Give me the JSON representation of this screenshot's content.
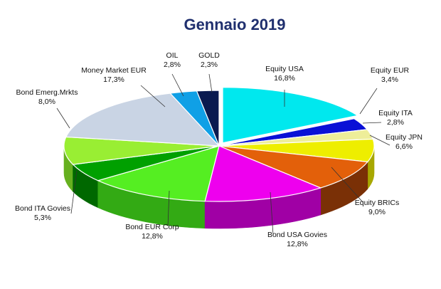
{
  "chart_data": {
    "type": "pie",
    "title": "Gennaio 2019",
    "slices": [
      {
        "label": "Equity USA",
        "value": 16.8,
        "value_text": "16,8%",
        "color": "#00e8ee",
        "dark": "#00aab0"
      },
      {
        "label": "Equity EUR",
        "value": 3.4,
        "value_text": "3,4%",
        "color": "#0a10d6",
        "dark": "#050a90"
      },
      {
        "label": "Equity ITA",
        "value": 2.8,
        "value_text": "2,8%",
        "color": "#eeee99",
        "dark": "#b5b56a"
      },
      {
        "label": "Equity JPN",
        "value": 6.6,
        "value_text": "6,6%",
        "color": "#eeee00",
        "dark": "#a8a800"
      },
      {
        "label": "Equity BRICs",
        "value": 9.0,
        "value_text": "9,0%",
        "color": "#e3600a",
        "dark": "#7a3006"
      },
      {
        "label": "Bond USA Govies",
        "value": 12.8,
        "value_text": "12,8%",
        "color": "#ee00ee",
        "dark": "#a000a5"
      },
      {
        "label": "Bond EUR Corp",
        "value": 12.8,
        "value_text": "12,8%",
        "color": "#55ee22",
        "dark": "#33aa14"
      },
      {
        "label": "Bond ITA Govies",
        "value": 5.3,
        "value_text": "5,3%",
        "color": "#00a000",
        "dark": "#006800"
      },
      {
        "label": "Bond Emerg.Mrkts",
        "value": 8.0,
        "value_text": "8,0%",
        "color": "#99ee33",
        "dark": "#66b01f"
      },
      {
        "label": "Money Market EUR",
        "value": 17.3,
        "value_text": "17,3%",
        "color": "#c9d4e4",
        "dark": "#8f9bb0"
      },
      {
        "label": "OIL",
        "value": 2.8,
        "value_text": "2,8%",
        "color": "#10a0e6",
        "dark": "#0a6fa3"
      },
      {
        "label": "GOLD",
        "value": 2.3,
        "value_text": "2,3%",
        "color": "#0a1a50",
        "dark": "#040c2a"
      }
    ]
  }
}
